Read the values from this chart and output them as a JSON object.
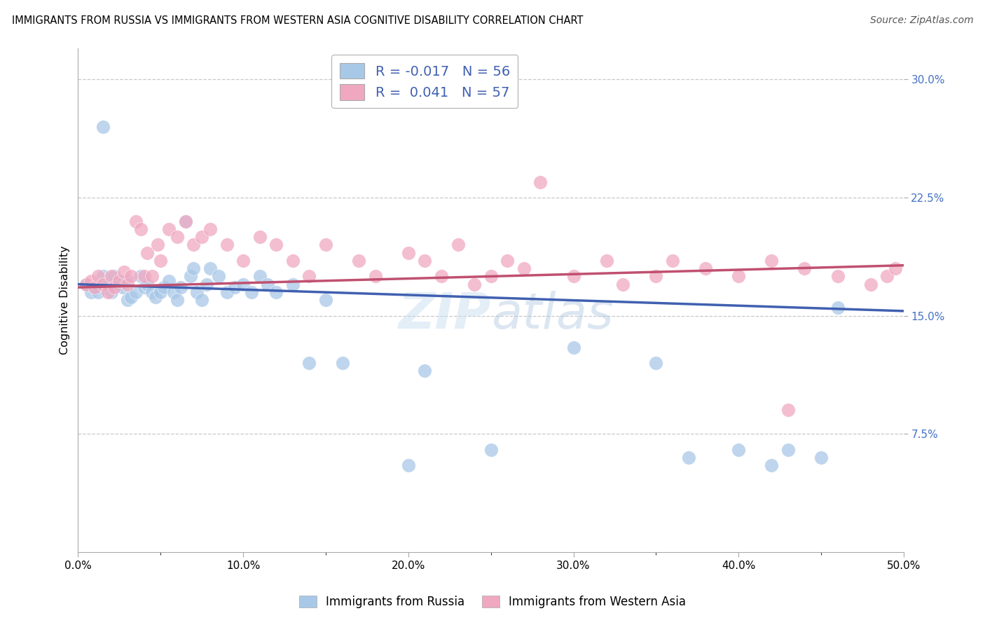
{
  "title": "IMMIGRANTS FROM RUSSIA VS IMMIGRANTS FROM WESTERN ASIA COGNITIVE DISABILITY CORRELATION CHART",
  "source": "Source: ZipAtlas.com",
  "ylabel": "Cognitive Disability",
  "xlim": [
    0.0,
    0.5
  ],
  "ylim": [
    0.0,
    0.32
  ],
  "yticks": [
    0.075,
    0.15,
    0.225,
    0.3
  ],
  "ytick_labels": [
    "7.5%",
    "15.0%",
    "22.5%",
    "30.0%"
  ],
  "xticks": [
    0.0,
    0.1,
    0.2,
    0.3,
    0.4,
    0.5
  ],
  "xtick_labels": [
    "0.0%",
    "10.0%",
    "20.0%",
    "30.0%",
    "40.0%",
    "50.0%"
  ],
  "grid_color": "#c8c8c8",
  "background_color": "#ffffff",
  "russia_color": "#a8c8e8",
  "western_asia_color": "#f0a8c0",
  "russia_R": -0.017,
  "russia_N": 56,
  "western_asia_R": 0.041,
  "western_asia_N": 57,
  "russia_line_color": "#4060b0",
  "western_asia_line_color": "#c05070",
  "tick_color": "#4472c4",
  "legend_label_russia": "Immigrants from Russia",
  "legend_label_western_asia": "Immigrants from Western Asia",
  "russia_x": [
    0.005,
    0.008,
    0.01,
    0.012,
    0.015,
    0.015,
    0.018,
    0.02,
    0.022,
    0.025,
    0.027,
    0.03,
    0.03,
    0.032,
    0.035,
    0.038,
    0.04,
    0.042,
    0.045,
    0.047,
    0.05,
    0.052,
    0.055,
    0.058,
    0.06,
    0.062,
    0.065,
    0.068,
    0.07,
    0.072,
    0.075,
    0.078,
    0.08,
    0.085,
    0.09,
    0.095,
    0.1,
    0.105,
    0.11,
    0.115,
    0.12,
    0.13,
    0.14,
    0.15,
    0.16,
    0.2,
    0.21,
    0.25,
    0.3,
    0.35,
    0.37,
    0.4,
    0.42,
    0.43,
    0.45,
    0.46
  ],
  "russia_y": [
    0.17,
    0.165,
    0.168,
    0.165,
    0.27,
    0.175,
    0.17,
    0.165,
    0.175,
    0.17,
    0.168,
    0.16,
    0.172,
    0.162,
    0.165,
    0.175,
    0.168,
    0.17,
    0.165,
    0.162,
    0.165,
    0.168,
    0.172,
    0.165,
    0.16,
    0.168,
    0.21,
    0.175,
    0.18,
    0.165,
    0.16,
    0.17,
    0.18,
    0.175,
    0.165,
    0.168,
    0.17,
    0.165,
    0.175,
    0.17,
    0.165,
    0.17,
    0.12,
    0.16,
    0.12,
    0.055,
    0.115,
    0.065,
    0.13,
    0.12,
    0.06,
    0.065,
    0.055,
    0.065,
    0.06,
    0.155
  ],
  "western_asia_x": [
    0.005,
    0.008,
    0.01,
    0.012,
    0.015,
    0.018,
    0.02,
    0.022,
    0.025,
    0.028,
    0.03,
    0.032,
    0.035,
    0.038,
    0.04,
    0.042,
    0.045,
    0.048,
    0.05,
    0.055,
    0.06,
    0.065,
    0.07,
    0.075,
    0.08,
    0.09,
    0.1,
    0.11,
    0.12,
    0.13,
    0.14,
    0.15,
    0.17,
    0.18,
    0.2,
    0.21,
    0.22,
    0.23,
    0.24,
    0.25,
    0.26,
    0.27,
    0.28,
    0.3,
    0.32,
    0.33,
    0.35,
    0.36,
    0.38,
    0.4,
    0.42,
    0.44,
    0.46,
    0.48,
    0.49,
    0.495,
    0.43
  ],
  "western_asia_y": [
    0.17,
    0.172,
    0.168,
    0.175,
    0.17,
    0.165,
    0.175,
    0.168,
    0.172,
    0.178,
    0.17,
    0.175,
    0.21,
    0.205,
    0.175,
    0.19,
    0.175,
    0.195,
    0.185,
    0.205,
    0.2,
    0.21,
    0.195,
    0.2,
    0.205,
    0.195,
    0.185,
    0.2,
    0.195,
    0.185,
    0.175,
    0.195,
    0.185,
    0.175,
    0.19,
    0.185,
    0.175,
    0.195,
    0.17,
    0.175,
    0.185,
    0.18,
    0.235,
    0.175,
    0.185,
    0.17,
    0.175,
    0.185,
    0.18,
    0.175,
    0.185,
    0.18,
    0.175,
    0.17,
    0.175,
    0.18,
    0.09
  ]
}
